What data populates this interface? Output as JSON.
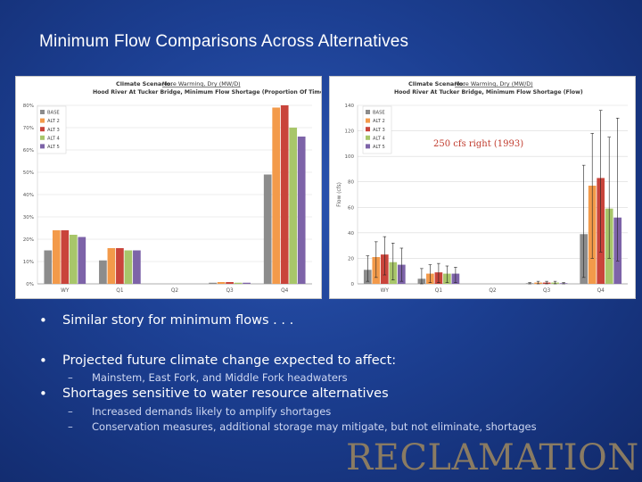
{
  "slide": {
    "title": "Minimum Flow Comparisons Across Alternatives",
    "background_color": "#1c3f92",
    "logo": "RECLAMATION"
  },
  "bullets": [
    {
      "text": "Similar story for minimum flows . . .",
      "sub": []
    },
    {
      "text": "Projected future climate change expected to affect:",
      "sub": [
        "Mainstem, East Fork, and Middle Fork headwaters"
      ]
    },
    {
      "text": "Shortages sensitive to water resource alternatives",
      "sub": [
        "Increased demands likely to amplify shortages",
        "Conservation measures, additional storage may mitigate, but not eliminate, shortages"
      ]
    }
  ],
  "chart_data": [
    {
      "type": "bar",
      "scenario_label": "Climate Scenario:",
      "scenario": "More Warming, Dry (MW/D)",
      "title": "Hood River At Tucker Bridge, Minimum Flow Shortage (Proportion Of Time)",
      "xlabel": "",
      "ylabel": "",
      "categories": [
        "WY",
        "Q1",
        "Q2",
        "Q3",
        "Q4"
      ],
      "ylim": [
        0,
        0.8
      ],
      "yticks": [
        "0%",
        "10%",
        "20%",
        "30%",
        "40%",
        "50%",
        "60%",
        "70%",
        "80%"
      ],
      "legend_position": "top-left",
      "grid": true,
      "series": [
        {
          "name": "BASE",
          "color": "#8c8c8c",
          "values": [
            0.15,
            0.105,
            0,
            0.005,
            0.49
          ]
        },
        {
          "name": "ALT 2",
          "color": "#f39a4a",
          "values": [
            0.24,
            0.16,
            0,
            0.008,
            0.79
          ]
        },
        {
          "name": "ALT 3",
          "color": "#c9443b",
          "values": [
            0.24,
            0.16,
            0,
            0.008,
            0.8
          ]
        },
        {
          "name": "ALT 4",
          "color": "#a8c66a",
          "values": [
            0.22,
            0.15,
            0,
            0.005,
            0.7
          ]
        },
        {
          "name": "ALT 5",
          "color": "#7d63a8",
          "values": [
            0.21,
            0.15,
            0,
            0.005,
            0.66
          ]
        }
      ]
    },
    {
      "type": "bar",
      "scenario_label": "Climate Scenario:",
      "scenario": "More Warming, Dry (MW/D)",
      "title": "Hood River At Tucker Bridge, Minimum Flow Shortage (Flow)",
      "xlabel": "",
      "ylabel": "Flow (cfs)",
      "categories": [
        "WY",
        "Q1",
        "Q2",
        "Q3",
        "Q4"
      ],
      "ylim": [
        0,
        140
      ],
      "yticks": [
        "0",
        "20",
        "40",
        "60",
        "80",
        "100",
        "120",
        "140"
      ],
      "legend_position": "top-left",
      "grid": true,
      "annotation": "250 cfs right (1993)",
      "series": [
        {
          "name": "BASE",
          "color": "#8c8c8c",
          "values": [
            11,
            4,
            0,
            0.5,
            39
          ],
          "err_high": [
            22,
            12,
            0,
            1,
            93
          ],
          "err_low": [
            2,
            0,
            0,
            0,
            5
          ]
        },
        {
          "name": "ALT 2",
          "color": "#f39a4a",
          "values": [
            21,
            8,
            0,
            1,
            77
          ],
          "err_high": [
            33,
            15,
            0,
            2,
            118
          ],
          "err_low": [
            5,
            1,
            0,
            0,
            20
          ]
        },
        {
          "name": "ALT 3",
          "color": "#c9443b",
          "values": [
            23,
            9,
            0,
            1,
            83
          ],
          "err_high": [
            37,
            16,
            0,
            2,
            136
          ],
          "err_low": [
            7,
            1,
            0,
            0,
            25
          ]
        },
        {
          "name": "ALT 4",
          "color": "#a8c66a",
          "values": [
            17,
            8,
            0,
            1,
            59
          ],
          "err_high": [
            32,
            14,
            0,
            2,
            115
          ],
          "err_low": [
            3,
            1,
            0,
            0,
            20
          ]
        },
        {
          "name": "ALT 5",
          "color": "#7d63a8",
          "values": [
            15,
            8,
            0,
            0.5,
            52
          ],
          "err_high": [
            28,
            13,
            0,
            1,
            130
          ],
          "err_low": [
            2,
            1,
            0,
            0,
            18
          ]
        }
      ]
    }
  ]
}
